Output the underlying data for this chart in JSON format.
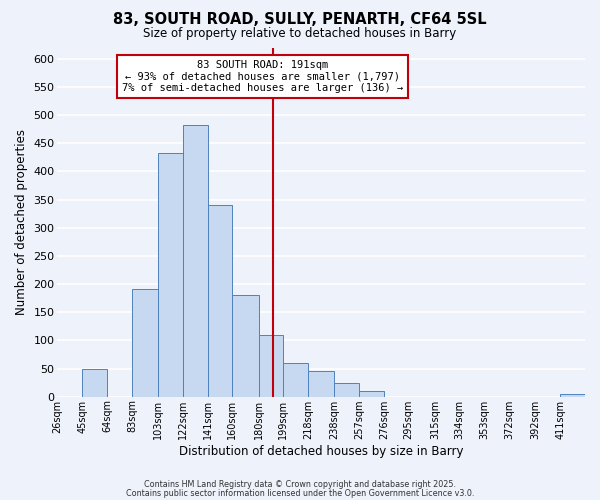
{
  "title": "83, SOUTH ROAD, SULLY, PENARTH, CF64 5SL",
  "subtitle": "Size of property relative to detached houses in Barry",
  "xlabel": "Distribution of detached houses by size in Barry",
  "ylabel": "Number of detached properties",
  "bin_labels": [
    "26sqm",
    "45sqm",
    "64sqm",
    "83sqm",
    "103sqm",
    "122sqm",
    "141sqm",
    "160sqm",
    "180sqm",
    "199sqm",
    "218sqm",
    "238sqm",
    "257sqm",
    "276sqm",
    "295sqm",
    "315sqm",
    "334sqm",
    "353sqm",
    "372sqm",
    "392sqm",
    "411sqm"
  ],
  "bin_edges": [
    26,
    45,
    64,
    83,
    103,
    122,
    141,
    160,
    180,
    199,
    218,
    238,
    257,
    276,
    295,
    315,
    334,
    353,
    372,
    392,
    411
  ],
  "bar_heights": [
    0,
    50,
    0,
    192,
    433,
    483,
    340,
    180,
    110,
    60,
    45,
    25,
    10,
    0,
    0,
    0,
    0,
    0,
    0,
    0,
    5
  ],
  "bar_color": "#c6d9f0",
  "bar_edge_color": "#4f81bd",
  "vline_x": 191,
  "vline_color": "#c0000a",
  "annotation_text": "83 SOUTH ROAD: 191sqm\n← 93% of detached houses are smaller (1,797)\n7% of semi-detached houses are larger (136) →",
  "annotation_box_color": "#c0000a",
  "ylim": [
    0,
    620
  ],
  "yticks": [
    0,
    50,
    100,
    150,
    200,
    250,
    300,
    350,
    400,
    450,
    500,
    550,
    600
  ],
  "background_color": "#eef2fb",
  "grid_color": "#ffffff",
  "footer_line1": "Contains HM Land Registry data © Crown copyright and database right 2025.",
  "footer_line2": "Contains public sector information licensed under the Open Government Licence v3.0."
}
